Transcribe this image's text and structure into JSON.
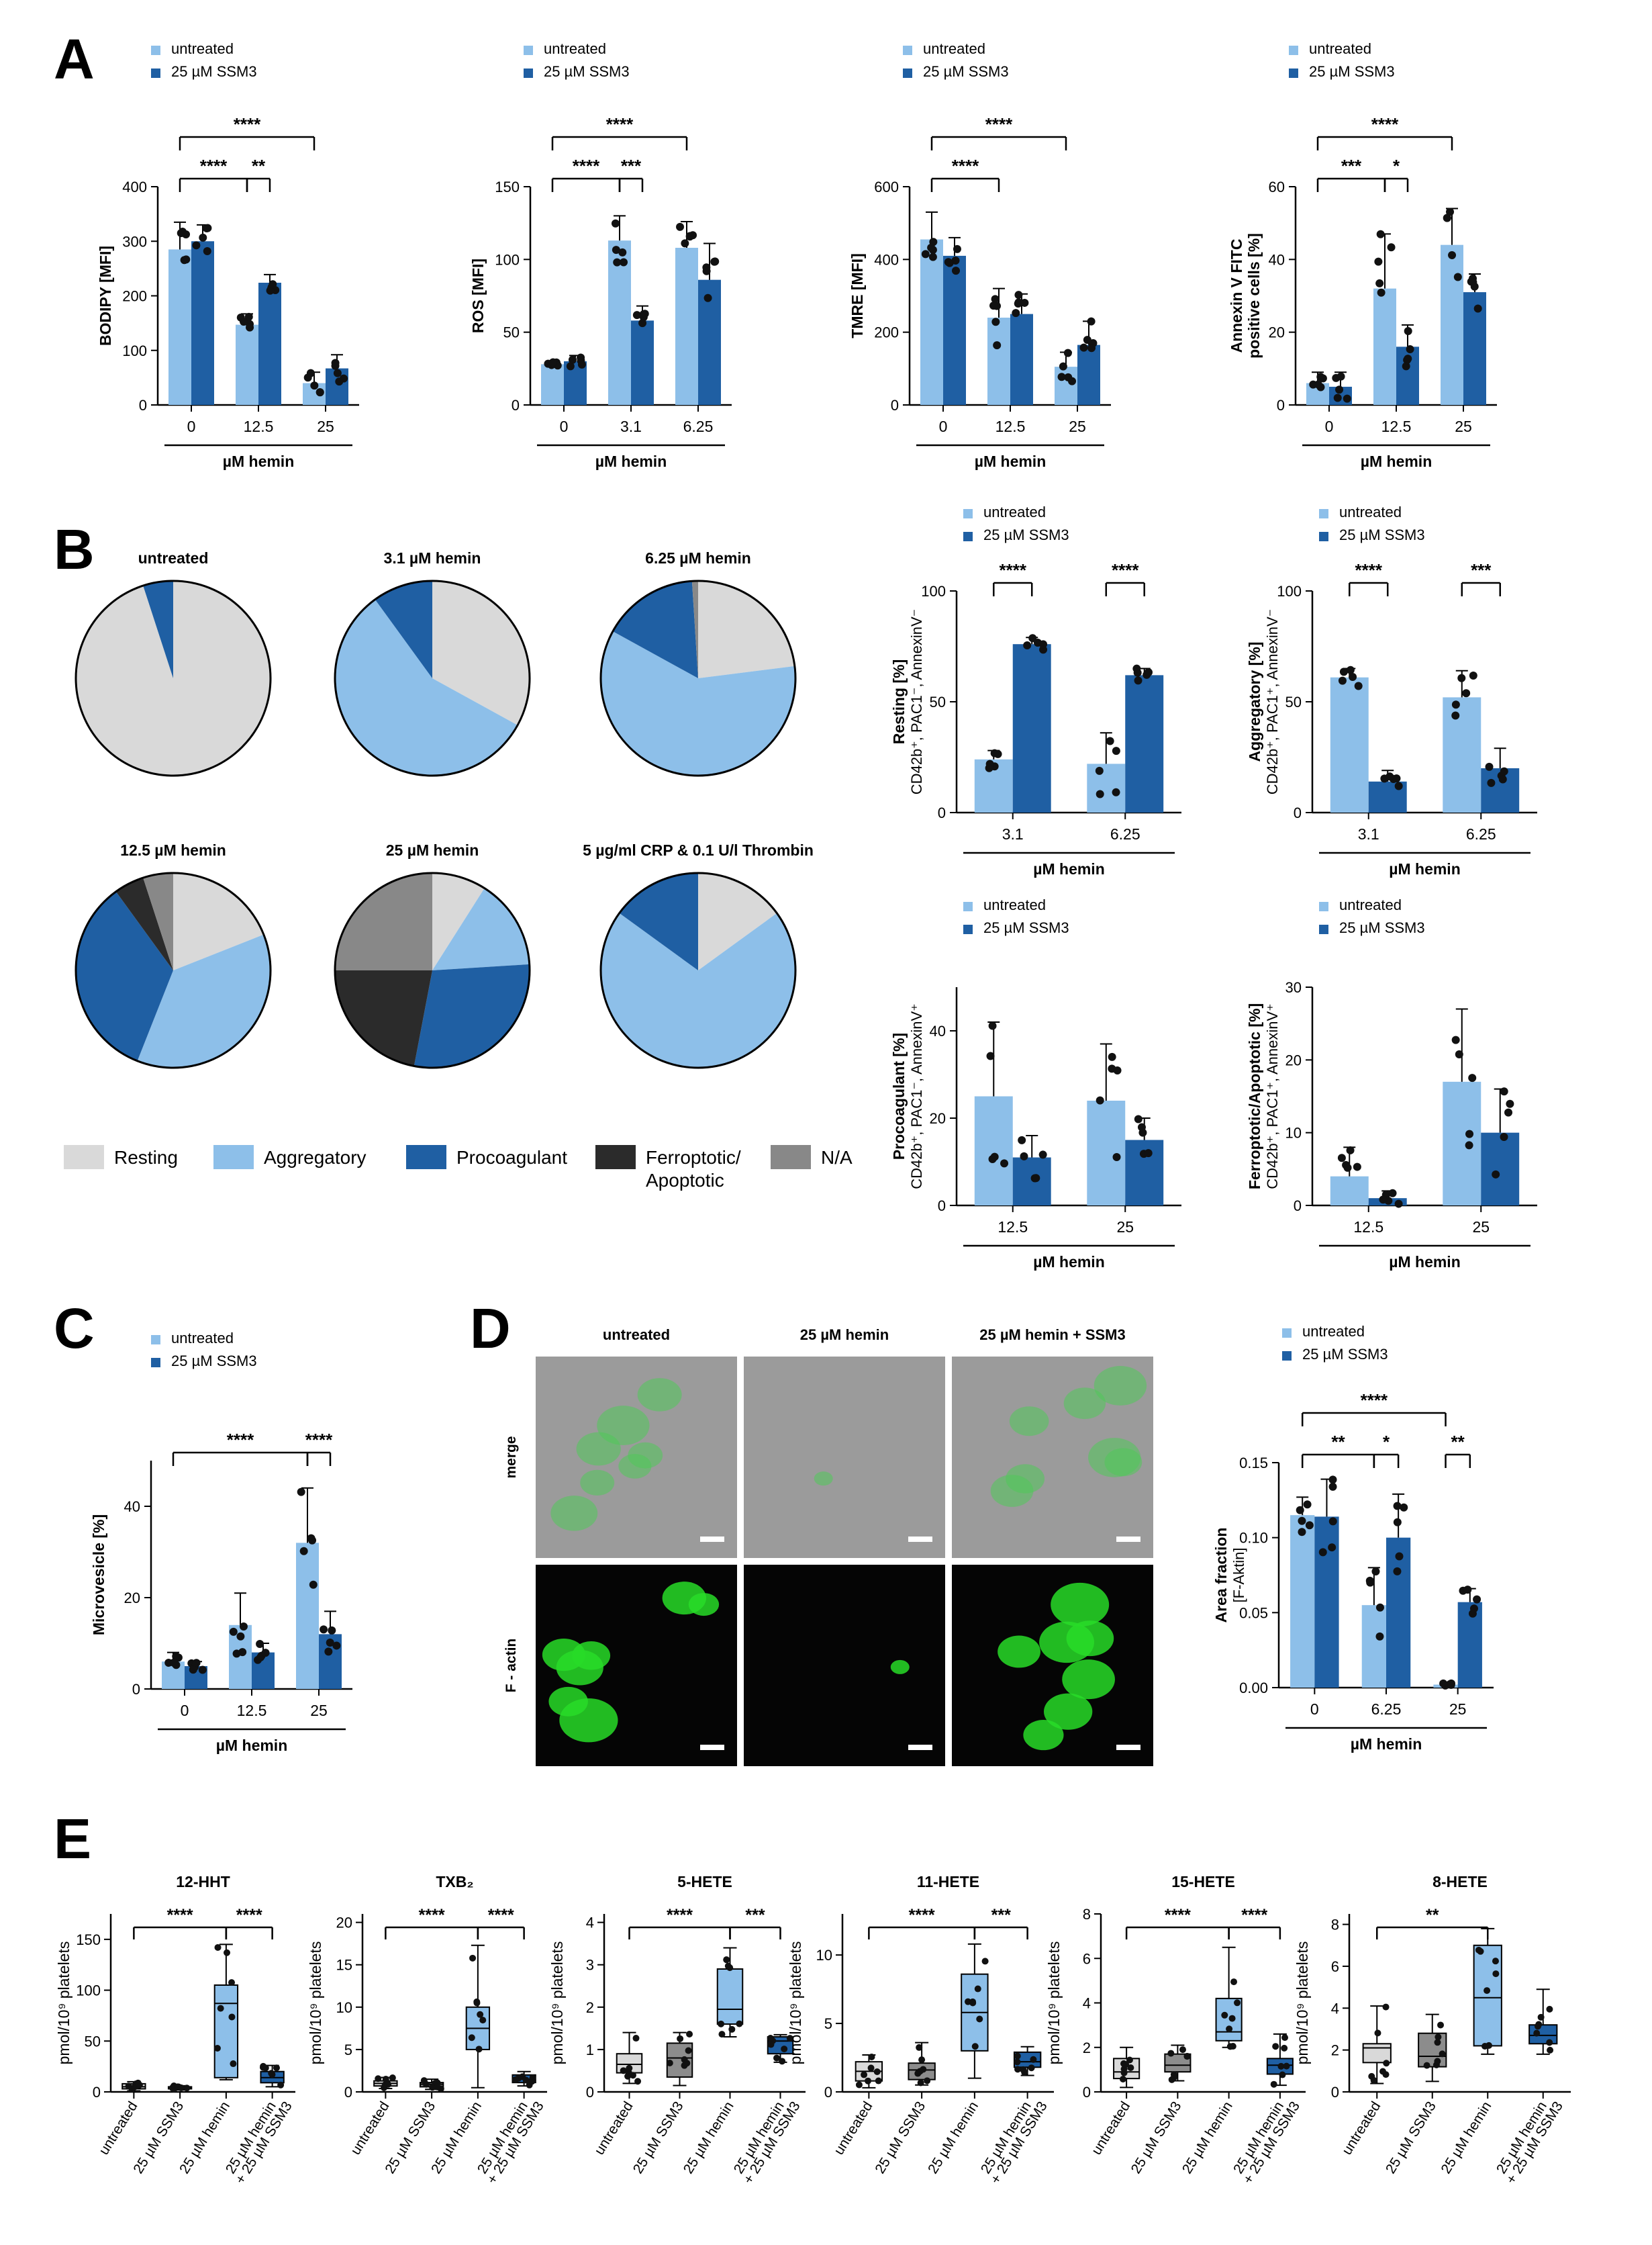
{
  "panel_labels": [
    "A",
    "B",
    "C",
    "D",
    "E"
  ],
  "colors": {
    "untreated": "#8dbfe9",
    "ssm3": "#1f5fa3",
    "resting": "#d9d9d9",
    "aggregatory": "#8dbfe9",
    "procoagulant": "#1f5fa3",
    "ferroptotic": "#2b2b2b",
    "na": "#888888",
    "box_gray_light": "#d9d9d9",
    "box_gray_dark": "#8c8c8c"
  },
  "legend_labels": {
    "untreated": "untreated",
    "ssm3": "25 µM SSM3"
  },
  "chart_data": [
    {
      "id": "A1",
      "type": "bar",
      "ylabel": "BODIPY [MFI]",
      "xlabel": "µM hemin",
      "categories": [
        "0",
        "12.5",
        "25"
      ],
      "ylim": [
        0,
        400
      ],
      "yticks": [
        0,
        100,
        200,
        300,
        400
      ],
      "series": [
        {
          "name": "untreated",
          "values": [
            285,
            147,
            40
          ],
          "err": [
            50,
            20,
            20
          ]
        },
        {
          "name": "25 µM SSM3",
          "values": [
            300,
            224,
            67
          ],
          "err": [
            30,
            15,
            25
          ]
        }
      ],
      "significance": [
        {
          "label": "****",
          "from": "0u",
          "to": "12.5u",
          "level": 1
        },
        {
          "label": "**",
          "from": "12.5u",
          "to": "12.5s",
          "level": 1
        },
        {
          "label": "****",
          "from": "0u",
          "to": "25u",
          "level": 2
        }
      ]
    },
    {
      "id": "A2",
      "type": "bar",
      "ylabel": "ROS [MFI]",
      "xlabel": "µM hemin",
      "categories": [
        "0",
        "3.1",
        "6.25"
      ],
      "ylim": [
        0,
        150
      ],
      "yticks": [
        0,
        50,
        100,
        150
      ],
      "series": [
        {
          "name": "untreated",
          "values": [
            28,
            113,
            108
          ],
          "err": [
            2,
            17,
            18
          ]
        },
        {
          "name": "25 µM SSM3",
          "values": [
            30,
            58,
            86
          ],
          "err": [
            4,
            10,
            25
          ]
        }
      ],
      "significance": [
        {
          "label": "****",
          "from": "0u",
          "to": "3.1u",
          "level": 1
        },
        {
          "label": "***",
          "from": "3.1u",
          "to": "3.1s",
          "level": 1
        },
        {
          "label": "****",
          "from": "0u",
          "to": "6.25u",
          "level": 2
        }
      ]
    },
    {
      "id": "A3",
      "type": "bar",
      "ylabel": "TMRE [MFI]",
      "xlabel": "µM hemin",
      "categories": [
        "0",
        "12.5",
        "25"
      ],
      "ylim": [
        0,
        600
      ],
      "yticks": [
        0,
        200,
        400,
        600
      ],
      "series": [
        {
          "name": "untreated",
          "values": [
            455,
            240,
            105
          ],
          "err": [
            75,
            80,
            40
          ]
        },
        {
          "name": "25 µM SSM3",
          "values": [
            410,
            250,
            165
          ],
          "err": [
            50,
            55,
            65
          ]
        }
      ],
      "significance": [
        {
          "label": "****",
          "from": "0u",
          "to": "12.5u",
          "level": 1
        },
        {
          "label": "****",
          "from": "0u",
          "to": "25u",
          "level": 2
        }
      ]
    },
    {
      "id": "A4",
      "type": "bar",
      "ylabel": "Annexin V FITC positive cells [%]",
      "xlabel": "µM hemin",
      "categories": [
        "0",
        "12.5",
        "25"
      ],
      "ylim": [
        0,
        60
      ],
      "yticks": [
        0,
        20,
        40,
        60
      ],
      "series": [
        {
          "name": "untreated",
          "values": [
            6,
            32,
            44
          ],
          "err": [
            3,
            15,
            10
          ]
        },
        {
          "name": "25 µM SSM3",
          "values": [
            5,
            16,
            31
          ],
          "err": [
            4,
            6,
            5
          ]
        }
      ],
      "significance": [
        {
          "label": "***",
          "from": "0u",
          "to": "12.5u",
          "level": 1
        },
        {
          "label": "*",
          "from": "12.5u",
          "to": "12.5s",
          "level": 1
        },
        {
          "label": "****",
          "from": "0u",
          "to": "25u",
          "level": 2
        }
      ]
    },
    {
      "id": "B-pie-1",
      "type": "pie",
      "title": "untreated",
      "slices": {
        "resting": 95,
        "aggregatory": 0,
        "procoagulant": 5,
        "ferroptotic": 0,
        "na": 0
      }
    },
    {
      "id": "B-pie-2",
      "type": "pie",
      "title": "3.1 µM hemin",
      "slices": {
        "resting": 33,
        "aggregatory": 57,
        "procoagulant": 10,
        "ferroptotic": 0,
        "na": 0
      }
    },
    {
      "id": "B-pie-3",
      "type": "pie",
      "title": "6.25 µM hemin",
      "slices": {
        "resting": 23,
        "aggregatory": 60,
        "procoagulant": 16,
        "ferroptotic": 0,
        "na": 1
      }
    },
    {
      "id": "B-pie-4",
      "type": "pie",
      "title": "12.5 µM hemin",
      "slices": {
        "resting": 19,
        "aggregatory": 37,
        "procoagulant": 34,
        "ferroptotic": 5,
        "na": 5
      }
    },
    {
      "id": "B-pie-5",
      "type": "pie",
      "title": "25 µM hemin",
      "slices": {
        "resting": 9,
        "aggregatory": 15,
        "procoagulant": 29,
        "ferroptotic": 22,
        "na": 25
      }
    },
    {
      "id": "B-pie-6",
      "type": "pie",
      "title": "5 µg/ml CRP & 0.1 U/l Thrombin",
      "slices": {
        "resting": 15,
        "aggregatory": 70,
        "procoagulant": 15,
        "ferroptotic": 0,
        "na": 0
      }
    },
    {
      "id": "B1",
      "type": "bar",
      "ylabel": "Resting [%]",
      "ylabel2": "CD42b⁺, PAC1⁻, AnnexinV⁻",
      "xlabel": "µM hemin",
      "categories": [
        "3.1",
        "6.25"
      ],
      "ylim": [
        0,
        100
      ],
      "yticks": [
        0,
        50,
        100
      ],
      "series": [
        {
          "name": "untreated",
          "values": [
            24,
            22
          ],
          "err": [
            4,
            14
          ]
        },
        {
          "name": "25 µM SSM3",
          "values": [
            76,
            62
          ],
          "err": [
            3,
            3
          ]
        }
      ],
      "significance": [
        {
          "label": "****",
          "from": "3.1u",
          "to": "3.1s",
          "level": 1
        },
        {
          "label": "****",
          "from": "6.25u",
          "to": "6.25s",
          "level": 1
        }
      ]
    },
    {
      "id": "B2",
      "type": "bar",
      "ylabel": "Aggregatory [%]",
      "ylabel2": "CD42b⁺, PAC1⁺, AnnexinV⁻",
      "xlabel": "µM hemin",
      "categories": [
        "3.1",
        "6.25"
      ],
      "ylim": [
        0,
        100
      ],
      "yticks": [
        0,
        50,
        100
      ],
      "series": [
        {
          "name": "untreated",
          "values": [
            61,
            52
          ],
          "err": [
            4,
            12
          ]
        },
        {
          "name": "25 µM SSM3",
          "values": [
            14,
            20
          ],
          "err": [
            5,
            9
          ]
        }
      ],
      "significance": [
        {
          "label": "****",
          "from": "3.1u",
          "to": "3.1s",
          "level": 1
        },
        {
          "label": "***",
          "from": "6.25u",
          "to": "6.25s",
          "level": 1
        }
      ]
    },
    {
      "id": "B3",
      "type": "bar",
      "ylabel": "Procoagulant [%]",
      "ylabel2": "CD42b⁺, PAC1⁻, AnnexinV⁺",
      "xlabel": "µM hemin",
      "categories": [
        "12.5",
        "25"
      ],
      "ylim": [
        0,
        50
      ],
      "yticks": [
        0,
        20,
        40
      ],
      "series": [
        {
          "name": "untreated",
          "values": [
            25,
            24
          ],
          "err": [
            17,
            13
          ]
        },
        {
          "name": "25 µM SSM3",
          "values": [
            11,
            15
          ],
          "err": [
            5,
            5
          ]
        }
      ],
      "significance": []
    },
    {
      "id": "B4",
      "type": "bar",
      "ylabel": "Ferroptotic/Apoptotic [%]",
      "ylabel2": "CD42b⁺, PAC1⁺, AnnexinV⁺",
      "xlabel": "µM hemin",
      "categories": [
        "12.5",
        "25"
      ],
      "ylim": [
        0,
        30
      ],
      "yticks": [
        0,
        10,
        20,
        30
      ],
      "series": [
        {
          "name": "untreated",
          "values": [
            4,
            17
          ],
          "err": [
            4,
            10
          ]
        },
        {
          "name": "25 µM SSM3",
          "values": [
            1,
            10
          ],
          "err": [
            1,
            6
          ]
        }
      ],
      "significance": []
    },
    {
      "id": "C",
      "type": "bar",
      "ylabel": "Microvesicle [%]",
      "xlabel": "µM hemin",
      "categories": [
        "0",
        "12.5",
        "25"
      ],
      "ylim": [
        0,
        50
      ],
      "yticks": [
        0,
        20,
        40
      ],
      "series": [
        {
          "name": "untreated",
          "values": [
            6,
            14,
            32
          ],
          "err": [
            2,
            7,
            12
          ]
        },
        {
          "name": "25 µM SSM3",
          "values": [
            5,
            8,
            12
          ],
          "err": [
            1,
            2,
            5
          ]
        }
      ],
      "significance": [
        {
          "label": "****",
          "from": "25u",
          "to": "25s",
          "level": 1
        },
        {
          "label": "****",
          "from": "0u",
          "to": "25u",
          "level": 1
        }
      ]
    },
    {
      "id": "D-bar",
      "type": "bar",
      "ylabel": "Area fraction",
      "ylabel2": "[F-Aktin]",
      "xlabel": "µM hemin",
      "categories": [
        "0",
        "6.25",
        "25"
      ],
      "ylim": [
        0,
        0.15
      ],
      "yticks": [
        0.0,
        0.05,
        0.1,
        0.15
      ],
      "series": [
        {
          "name": "untreated",
          "values": [
            0.115,
            0.055,
            0.002
          ],
          "err": [
            0.012,
            0.025,
            0.001
          ]
        },
        {
          "name": "25 µM SSM3",
          "values": [
            0.114,
            0.1,
            0.057
          ],
          "err": [
            0.025,
            0.029,
            0.009
          ]
        }
      ],
      "significance": [
        {
          "label": "**",
          "from": "0u",
          "to": "6.25u",
          "level": 1
        },
        {
          "label": "*",
          "from": "6.25u",
          "to": "6.25s",
          "level": 1
        },
        {
          "label": "**",
          "from": "25u",
          "to": "25s",
          "level": 1
        },
        {
          "label": "****",
          "from": "0u",
          "to": "25u",
          "level": 2
        }
      ]
    },
    {
      "id": "E1",
      "type": "box",
      "title": "12-HHT",
      "ylabel": "pmol/10⁹ platelets",
      "categories": [
        "untreated",
        "25 µM SSM3",
        "25 µM hemin",
        "25 µM hemin + 25 µM SSM3"
      ],
      "ylim": [
        0,
        175
      ],
      "yticks": [
        0,
        50,
        100,
        150
      ],
      "boxes": [
        [
          1,
          3,
          5,
          8,
          10
        ],
        [
          2,
          3,
          4,
          5,
          6
        ],
        [
          12,
          14,
          87,
          105,
          145
        ],
        [
          5,
          9,
          14,
          20,
          26
        ]
      ],
      "significance": [
        {
          "label": "****",
          "from": 0,
          "to": 2
        },
        {
          "label": "****",
          "from": 2,
          "to": 3
        }
      ]
    },
    {
      "id": "E2",
      "type": "box",
      "title": "TXB₂",
      "ylabel": "pmol/10⁹ platelets",
      "categories": [
        "untreated",
        "25 µM SSM3",
        "25 µM hemin",
        "25 µM hemin + 25 µM SSM3"
      ],
      "ylim": [
        0,
        21
      ],
      "yticks": [
        0,
        5,
        10,
        15,
        20
      ],
      "boxes": [
        [
          0.4,
          0.7,
          1.0,
          1.3,
          1.7
        ],
        [
          0.3,
          0.6,
          0.9,
          1.1,
          1.5
        ],
        [
          0.5,
          5,
          7.5,
          10,
          17.3
        ],
        [
          0.7,
          1.1,
          1.5,
          2.0,
          2.4
        ]
      ],
      "significance": [
        {
          "label": "****",
          "from": 0,
          "to": 2
        },
        {
          "label": "****",
          "from": 2,
          "to": 3
        }
      ]
    },
    {
      "id": "E3",
      "type": "box",
      "title": "5-HETE",
      "ylabel": "pmol/10⁹ platelets",
      "categories": [
        "untreated",
        "25 µM SSM3",
        "25 µM hemin",
        "25 µM hemin + 25 µM SSM3"
      ],
      "ylim": [
        0,
        4.2
      ],
      "yticks": [
        0,
        1,
        2,
        3,
        4
      ],
      "boxes": [
        [
          0.2,
          0.45,
          0.65,
          0.9,
          1.4
        ],
        [
          0.15,
          0.35,
          0.8,
          1.15,
          1.4
        ],
        [
          1.3,
          1.6,
          1.95,
          2.9,
          3.4
        ],
        [
          0.7,
          0.9,
          1.2,
          1.3,
          1.35
        ]
      ],
      "significance": [
        {
          "label": "****",
          "from": 0,
          "to": 2
        },
        {
          "label": "***",
          "from": 2,
          "to": 3
        }
      ]
    },
    {
      "id": "E4",
      "type": "box",
      "title": "11-HETE",
      "ylabel": "pmol/10⁹ platelets",
      "categories": [
        "untreated",
        "25 µM SSM3",
        "25 µM hemin",
        "25 µM hemin + 25 µM SSM3"
      ],
      "ylim": [
        0,
        13
      ],
      "yticks": [
        0,
        5,
        10
      ],
      "boxes": [
        [
          0.3,
          0.8,
          1.5,
          2.2,
          2.7
        ],
        [
          0.5,
          0.9,
          1.6,
          2.1,
          3.6
        ],
        [
          1,
          3,
          5.8,
          8.6,
          10.8
        ],
        [
          1.2,
          1.8,
          2.2,
          2.9,
          3.3
        ]
      ],
      "significance": [
        {
          "label": "****",
          "from": 0,
          "to": 2
        },
        {
          "label": "***",
          "from": 2,
          "to": 3
        }
      ]
    },
    {
      "id": "E5",
      "type": "box",
      "title": "15-HETE",
      "ylabel": "pmol/10⁹ platelets",
      "categories": [
        "untreated",
        "25 µM SSM3",
        "25 µM hemin",
        "25 µM hemin + 25 µM SSM3"
      ],
      "ylim": [
        0,
        8
      ],
      "yticks": [
        0,
        2,
        4,
        6,
        8
      ],
      "boxes": [
        [
          0.2,
          0.6,
          0.9,
          1.5,
          2.0
        ],
        [
          0.5,
          0.9,
          1.2,
          1.7,
          2.1
        ],
        [
          2.0,
          2.3,
          2.7,
          4.2,
          6.5
        ],
        [
          0.3,
          0.8,
          1.2,
          1.5,
          2.6
        ]
      ],
      "significance": [
        {
          "label": "****",
          "from": 0,
          "to": 2
        },
        {
          "label": "****",
          "from": 2,
          "to": 3
        }
      ]
    },
    {
      "id": "E6",
      "type": "box",
      "title": "8-HETE",
      "ylabel": "pmol/10⁹ platelets",
      "categories": [
        "untreated",
        "25 µM SSM3",
        "25 µM hemin",
        "25 µM hemin + 25 µM SSM3"
      ],
      "ylim": [
        0,
        8.5
      ],
      "yticks": [
        0,
        2,
        4,
        6,
        8
      ],
      "boxes": [
        [
          0.4,
          1.4,
          2.1,
          2.3,
          4.1
        ],
        [
          0.5,
          1.2,
          1.7,
          2.8,
          3.7
        ],
        [
          1.8,
          2.2,
          4.5,
          7.0,
          7.8
        ],
        [
          1.8,
          2.3,
          2.7,
          3.2,
          4.9
        ]
      ],
      "significance": [
        {
          "label": "**",
          "from": 0,
          "to": 2
        }
      ]
    }
  ],
  "pie_legend": {
    "resting": "Resting",
    "aggregatory": "Aggregatory",
    "procoagulant": "Procoagulant",
    "ferroptotic_line1": "Ferroptotic/",
    "ferroptotic_line2": "Apoptotic",
    "na": "N/A"
  },
  "microscopy": {
    "col_titles": [
      "untreated",
      "25 µM hemin",
      "25 µM hemin + SSM3"
    ],
    "row_titles": [
      "merge",
      "F - actin"
    ]
  }
}
